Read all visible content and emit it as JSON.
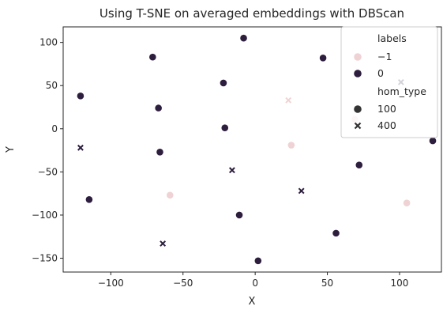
{
  "chart_data": {
    "type": "scatter",
    "title": "Using T-SNE on averaged embeddings with DBScan",
    "xlabel": "X",
    "ylabel": "Y",
    "xlim": [
      -133,
      129
    ],
    "ylim": [
      -166,
      118
    ],
    "xticks": [
      -100,
      -50,
      0,
      50,
      100
    ],
    "yticks": [
      -150,
      -100,
      -50,
      0,
      50,
      100
    ],
    "grid": false,
    "legend": {
      "position": "top-right",
      "hue_title": "labels",
      "style_title": "hom_type",
      "hue_entries": [
        {
          "label": "−1",
          "color": "#efd3d4"
        },
        {
          "label": "0",
          "color": "#2d1e3e"
        }
      ],
      "style_entries": [
        {
          "label": "100",
          "marker": "circle"
        },
        {
          "label": "400",
          "marker": "x"
        }
      ]
    },
    "points": [
      {
        "x": -121,
        "y": 38,
        "label": "0",
        "hom_type": "100"
      },
      {
        "x": -115,
        "y": -82,
        "label": "0",
        "hom_type": "100"
      },
      {
        "x": -71,
        "y": 83,
        "label": "0",
        "hom_type": "100"
      },
      {
        "x": -67,
        "y": 24,
        "label": "0",
        "hom_type": "100"
      },
      {
        "x": -66,
        "y": -27,
        "label": "0",
        "hom_type": "100"
      },
      {
        "x": -59,
        "y": -77,
        "label": "−1",
        "hom_type": "100"
      },
      {
        "x": -22,
        "y": 53,
        "label": "0",
        "hom_type": "100"
      },
      {
        "x": -21,
        "y": 1,
        "label": "0",
        "hom_type": "100"
      },
      {
        "x": -11,
        "y": -100,
        "label": "0",
        "hom_type": "100"
      },
      {
        "x": -8,
        "y": 105,
        "label": "0",
        "hom_type": "100"
      },
      {
        "x": 2,
        "y": -153,
        "label": "0",
        "hom_type": "100"
      },
      {
        "x": 25,
        "y": -19,
        "label": "−1",
        "hom_type": "100"
      },
      {
        "x": 47,
        "y": 82,
        "label": "0",
        "hom_type": "100"
      },
      {
        "x": 56,
        "y": -121,
        "label": "0",
        "hom_type": "100"
      },
      {
        "x": 69,
        "y": 11,
        "label": "−1",
        "hom_type": "100"
      },
      {
        "x": 72,
        "y": -42,
        "label": "0",
        "hom_type": "100"
      },
      {
        "x": 105,
        "y": -86,
        "label": "−1",
        "hom_type": "100"
      },
      {
        "x": 123,
        "y": -14,
        "label": "0",
        "hom_type": "100"
      },
      {
        "x": -121,
        "y": -22,
        "label": "0",
        "hom_type": "400"
      },
      {
        "x": -64,
        "y": -133,
        "label": "0",
        "hom_type": "400"
      },
      {
        "x": -16,
        "y": -48,
        "label": "0",
        "hom_type": "400"
      },
      {
        "x": 23,
        "y": 33,
        "label": "−1",
        "hom_type": "400"
      },
      {
        "x": 32,
        "y": -72,
        "label": "0",
        "hom_type": "400"
      },
      {
        "x": 101,
        "y": 54,
        "label": "0",
        "hom_type": "400"
      }
    ]
  }
}
